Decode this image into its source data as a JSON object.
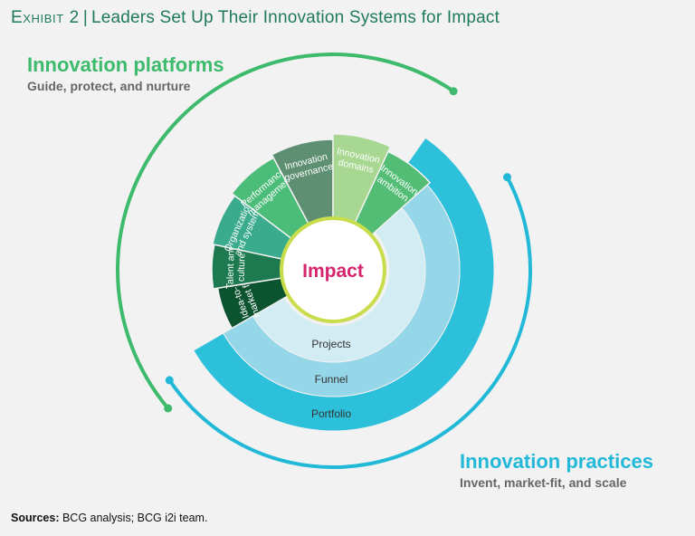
{
  "header": {
    "exhibit": "Exhibit 2",
    "separator": "|",
    "title": "Leaders Set Up Their Innovation Systems for Impact"
  },
  "platforms": {
    "title": "Innovation platforms",
    "subtitle": "Guide, protect, and nurture",
    "color": "#3dba6b"
  },
  "practices": {
    "title": "Innovation practices",
    "subtitle": "Invent, market-fit, and scale",
    "color": "#22b9d8"
  },
  "center": {
    "label": "Impact",
    "color": "#d6246e",
    "ring_color": "#c9dc4b"
  },
  "segments": [
    {
      "lines": [
        "Idea-to-",
        "market fit"
      ],
      "color": "#0c5430"
    },
    {
      "lines": [
        "Talent and",
        "culture"
      ],
      "color": "#1d7a50"
    },
    {
      "lines": [
        "Organization",
        "and systems"
      ],
      "color": "#3aab8c"
    },
    {
      "lines": [
        "Performance",
        "management"
      ],
      "color": "#4cbd78"
    },
    {
      "lines": [
        "Innovation",
        "governance"
      ],
      "color": "#5e8f73"
    },
    {
      "lines": [
        "Innovation",
        "domains"
      ],
      "color": "#a7d790"
    },
    {
      "lines": [
        "Innovation",
        "ambition"
      ],
      "color": "#53bd76"
    }
  ],
  "rings": [
    {
      "label": "Portfolio",
      "color": "#2cc0db"
    },
    {
      "label": "Funnel",
      "color": "#95d6e8"
    },
    {
      "label": "Projects",
      "color": "#d2ecf3"
    }
  ],
  "sources": {
    "label": "Sources:",
    "text": " BCG analysis; BCG i2i team."
  }
}
